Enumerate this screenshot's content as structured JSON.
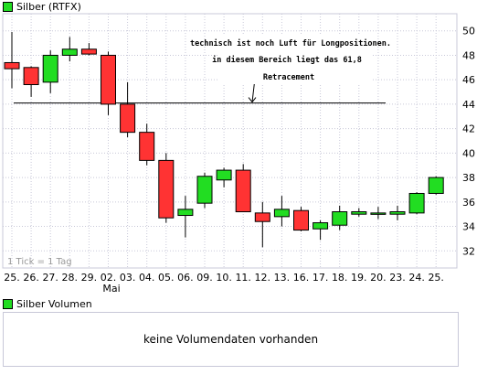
{
  "price_legend": {
    "label": "Silber (RTFX)",
    "color": "#22dd22"
  },
  "volume_legend": {
    "label": "Silber Volumen",
    "color": "#22dd22"
  },
  "volume_message": "keine Volumendaten vorhanden",
  "tick_note": "1 Tick = 1 Tag",
  "month_label": "Mai",
  "annotation": {
    "lines": [
      "technisch ist noch Luft für Longpositionen.",
      "in diesem Bereich liegt das 61,8",
      "Retracement"
    ],
    "level": 44.1
  },
  "colors": {
    "up": "#22dd22",
    "down": "#ff3333",
    "outline": "#000000",
    "grid": "#c8c8d8"
  },
  "chart_data": {
    "type": "candlestick",
    "title": "Silber (RTFX)",
    "ylim": [
      30.6,
      51.4
    ],
    "yticks": [
      32,
      34,
      36,
      38,
      40,
      42,
      44,
      46,
      48,
      50
    ],
    "grid": true,
    "categories": [
      "25.",
      "26.",
      "27.",
      "28.",
      "29.",
      "02.",
      "03.",
      "04.",
      "05.",
      "06.",
      "09.",
      "10.",
      "11.",
      "12.",
      "13.",
      "16.",
      "17.",
      "18.",
      "19.",
      "20.",
      "23.",
      "24.",
      "25."
    ],
    "open": [
      47.4,
      47.0,
      45.8,
      48.0,
      48.5,
      48.0,
      44.0,
      41.7,
      39.4,
      34.9,
      35.9,
      37.8,
      38.6,
      35.1,
      34.8,
      35.3,
      33.8,
      34.1,
      35.0,
      35.0,
      35.0,
      35.1,
      36.7
    ],
    "high": [
      49.9,
      47.1,
      48.4,
      49.5,
      49.0,
      48.3,
      45.8,
      42.4,
      40.0,
      36.5,
      38.4,
      38.8,
      39.1,
      36.0,
      36.5,
      35.6,
      34.5,
      35.7,
      35.5,
      35.6,
      35.7,
      36.8,
      38.1
    ],
    "low": [
      45.3,
      44.6,
      44.9,
      47.5,
      48.0,
      43.1,
      41.3,
      39.0,
      34.3,
      33.1,
      35.5,
      37.2,
      35.3,
      32.3,
      34.0,
      33.6,
      32.9,
      33.7,
      34.8,
      34.6,
      34.5,
      35.0,
      36.6
    ],
    "close": [
      46.9,
      45.6,
      48.0,
      48.5,
      48.1,
      44.0,
      41.7,
      39.4,
      34.7,
      35.4,
      38.1,
      38.6,
      35.2,
      34.4,
      35.4,
      33.7,
      34.3,
      35.2,
      35.2,
      35.1,
      35.2,
      36.7,
      38.0
    ]
  }
}
